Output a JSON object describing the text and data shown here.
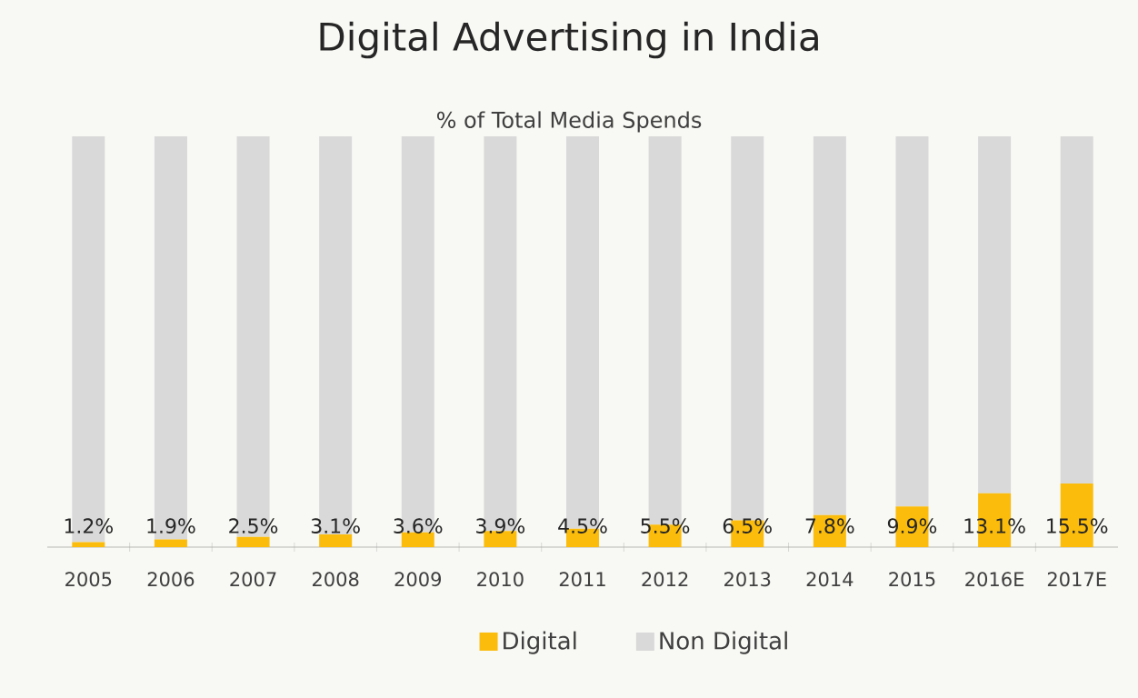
{
  "chart_data": {
    "type": "bar",
    "title": "Digital Advertising in India",
    "subtitle": "% of Total Media Spends",
    "categories": [
      "2005",
      "2006",
      "2007",
      "2008",
      "2009",
      "2010",
      "2011",
      "2012",
      "2013",
      "2014",
      "2015",
      "2016E",
      "2017E"
    ],
    "series": [
      {
        "name": "Digital",
        "color": "#fbbc0c",
        "values": [
          1.2,
          1.9,
          2.5,
          3.1,
          3.6,
          3.9,
          4.5,
          5.5,
          6.5,
          7.8,
          9.9,
          13.1,
          15.5
        ],
        "value_labels": [
          "1.2%",
          "1.9%",
          "2.5%",
          "3.1%",
          "3.6%",
          "3.9%",
          "4.5%",
          "5.5%",
          "6.5%",
          "7.8%",
          "9.9%",
          "13.1%",
          "15.5%"
        ]
      },
      {
        "name": "Non Digital",
        "color": "#d9d9d9",
        "values": [
          98.8,
          98.1,
          97.5,
          96.9,
          96.4,
          96.1,
          95.5,
          94.5,
          93.5,
          92.2,
          90.1,
          86.9,
          84.5
        ]
      }
    ],
    "stacked": true,
    "ylim": [
      0,
      100
    ],
    "legend": "bottom"
  }
}
